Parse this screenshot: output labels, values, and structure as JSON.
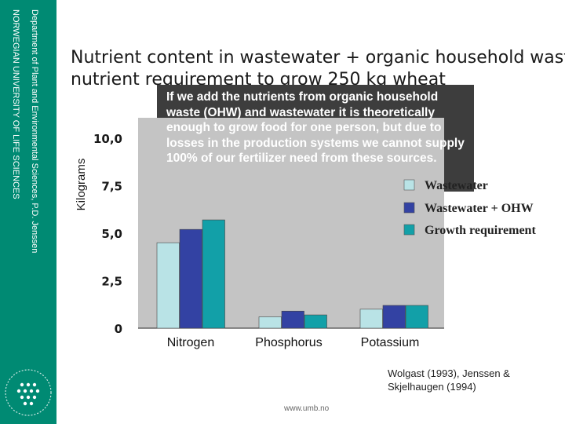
{
  "slide": {
    "title_line1": "Nutrient content in wastewater + organic household waste",
    "title_line2": "nutrient requirement to grow 250 kg wheat",
    "note": "If we add the nutrients from organic household waste (OHW) and wastewater it is theoretically enough to grow food for one person, but due to losses in the production systems we cannot supply 100% of our fertilizer need from these sources.",
    "source_line1": "Wolgast (1993), Jenssen &",
    "source_line2": "Skjelhaugen (1994)",
    "url": "www.umb.no"
  },
  "sidebar": {
    "university": "NORWEGIAN UNIVERSITY OF LIFE SCIENCES",
    "department": "Department of Plant and Environmental Sciences, P.D. Jenssen",
    "color": "#008a73"
  },
  "chart_data": {
    "type": "bar",
    "categories": [
      "Nitrogen",
      "Phosphorus",
      "Potassium"
    ],
    "series": [
      {
        "name": "Wastewater",
        "color": "#b9e3e6",
        "values": [
          4.5,
          0.6,
          1.0
        ]
      },
      {
        "name": "Wastewater + OHW",
        "color": "#3342a3",
        "values": [
          5.2,
          0.9,
          1.2
        ]
      },
      {
        "name": "Growth requirement",
        "color": "#12a0a8",
        "values": [
          5.7,
          0.7,
          1.2
        ]
      }
    ],
    "ylabel": "Kilograms",
    "yticks": [
      "0",
      "2,5",
      "5,0",
      "7,5",
      "10,0"
    ],
    "ytick_values": [
      0,
      2.5,
      5.0,
      7.5,
      10.0
    ],
    "ylim": [
      0,
      10
    ],
    "legend_position": "right",
    "grid": false
  }
}
